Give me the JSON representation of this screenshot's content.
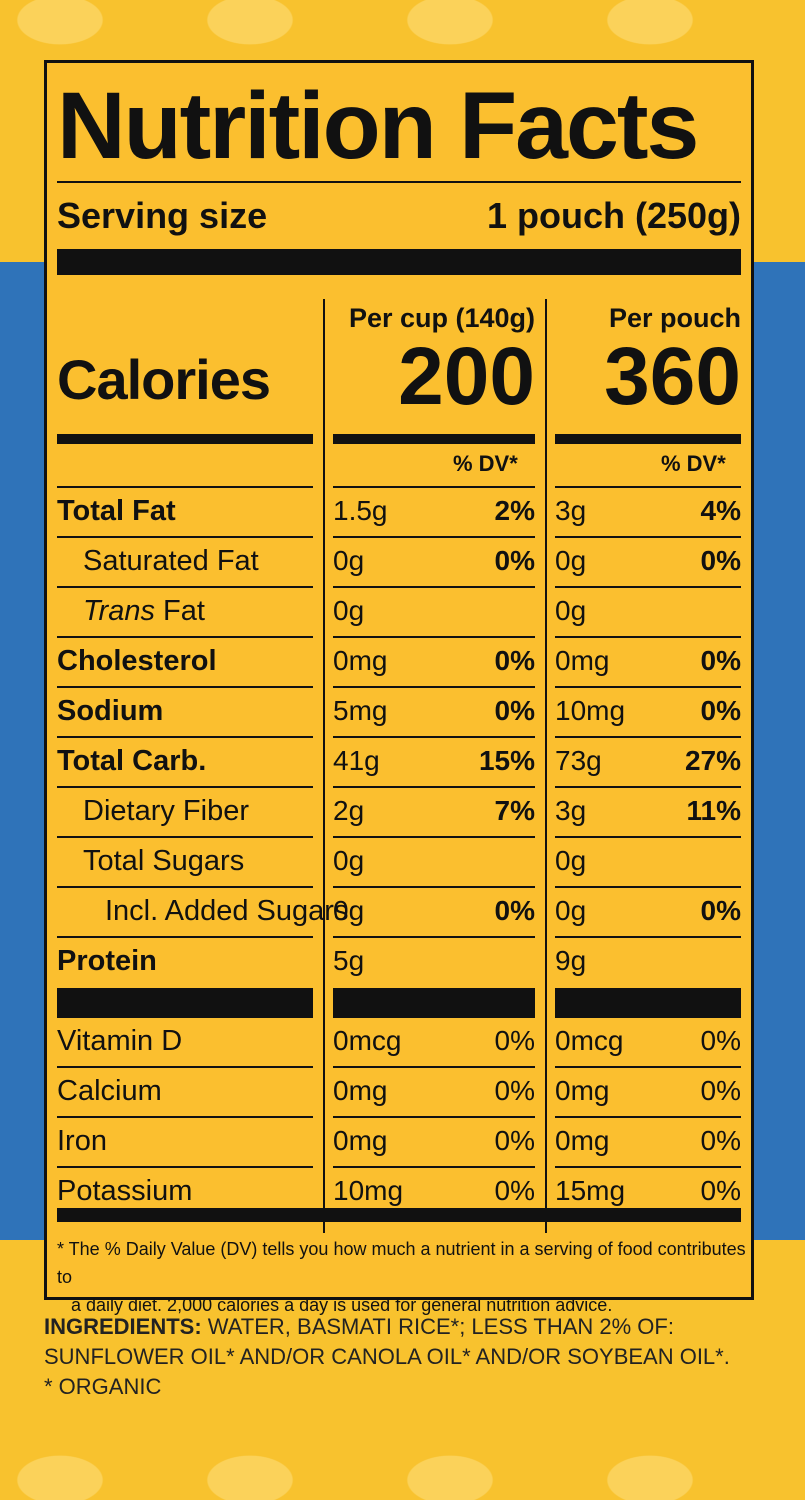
{
  "title": "Nutrition Facts",
  "serving": {
    "label": "Serving size",
    "value": "1 pouch (250g)"
  },
  "calories": {
    "label": "Calories",
    "col1": {
      "header": "Per cup (140g)",
      "value": "200"
    },
    "col2": {
      "header": "Per pouch",
      "value": "360"
    }
  },
  "dv_header": "% DV*",
  "rows": [
    {
      "label": "Total Fat",
      "v1": "1.5g",
      "p1": "2%",
      "v2": "3g",
      "p2": "4%"
    },
    {
      "label": "Saturated Fat",
      "v1": "0g",
      "p1": "0%",
      "v2": "0g",
      "p2": "0%"
    },
    {
      "label_italic": "Trans",
      "label_rest": " Fat",
      "v1": "0g",
      "p1": "",
      "v2": "0g",
      "p2": ""
    },
    {
      "label": "Cholesterol",
      "v1": "0mg",
      "p1": "0%",
      "v2": "0mg",
      "p2": "0%"
    },
    {
      "label": "Sodium",
      "v1": "5mg",
      "p1": "0%",
      "v2": "10mg",
      "p2": "0%"
    },
    {
      "label": "Total Carb.",
      "v1": "41g",
      "p1": "15%",
      "v2": "73g",
      "p2": "27%"
    },
    {
      "label": "Dietary Fiber",
      "v1": "2g",
      "p1": "7%",
      "v2": "3g",
      "p2": "11%"
    },
    {
      "label": "Total Sugars",
      "v1": "0g",
      "p1": "",
      "v2": "0g",
      "p2": ""
    },
    {
      "label": "Incl. Added Sugars",
      "v1": "0g",
      "p1": "0%",
      "v2": "0g",
      "p2": "0%"
    },
    {
      "label": "Protein",
      "v1": "5g",
      "p1": "",
      "v2": "9g",
      "p2": ""
    }
  ],
  "vitamins": [
    {
      "label": "Vitamin D",
      "v1": "0mcg",
      "p1": "0%",
      "v2": "0mcg",
      "p2": "0%"
    },
    {
      "label": "Calcium",
      "v1": "0mg",
      "p1": "0%",
      "v2": "0mg",
      "p2": "0%"
    },
    {
      "label": "Iron",
      "v1": "0mg",
      "p1": "0%",
      "v2": "0mg",
      "p2": "0%"
    },
    {
      "label": "Potassium",
      "v1": "10mg",
      "p1": "0%",
      "v2": "15mg",
      "p2": "0%"
    }
  ],
  "footnote": {
    "line1": "* The % Daily Value (DV) tells you how much a nutrient in a serving of food contributes to",
    "line2": "a daily diet. 2,000 calories a day is used for general nutrition advice."
  },
  "ingredients": {
    "label": "INGREDIENTS:",
    "text1": " WATER, BASMATI RICE*; LESS THAN 2% OF:",
    "text2": "SUNFLOWER OIL* AND/OR CANOLA OIL* AND/OR SOYBEAN OIL*.",
    "text3": "* ORGANIC"
  },
  "colors": {
    "panel": "#fbbf2f",
    "background_yellow": "#f8c22e",
    "background_blue": "#2f73b9",
    "ink": "#111111"
  }
}
